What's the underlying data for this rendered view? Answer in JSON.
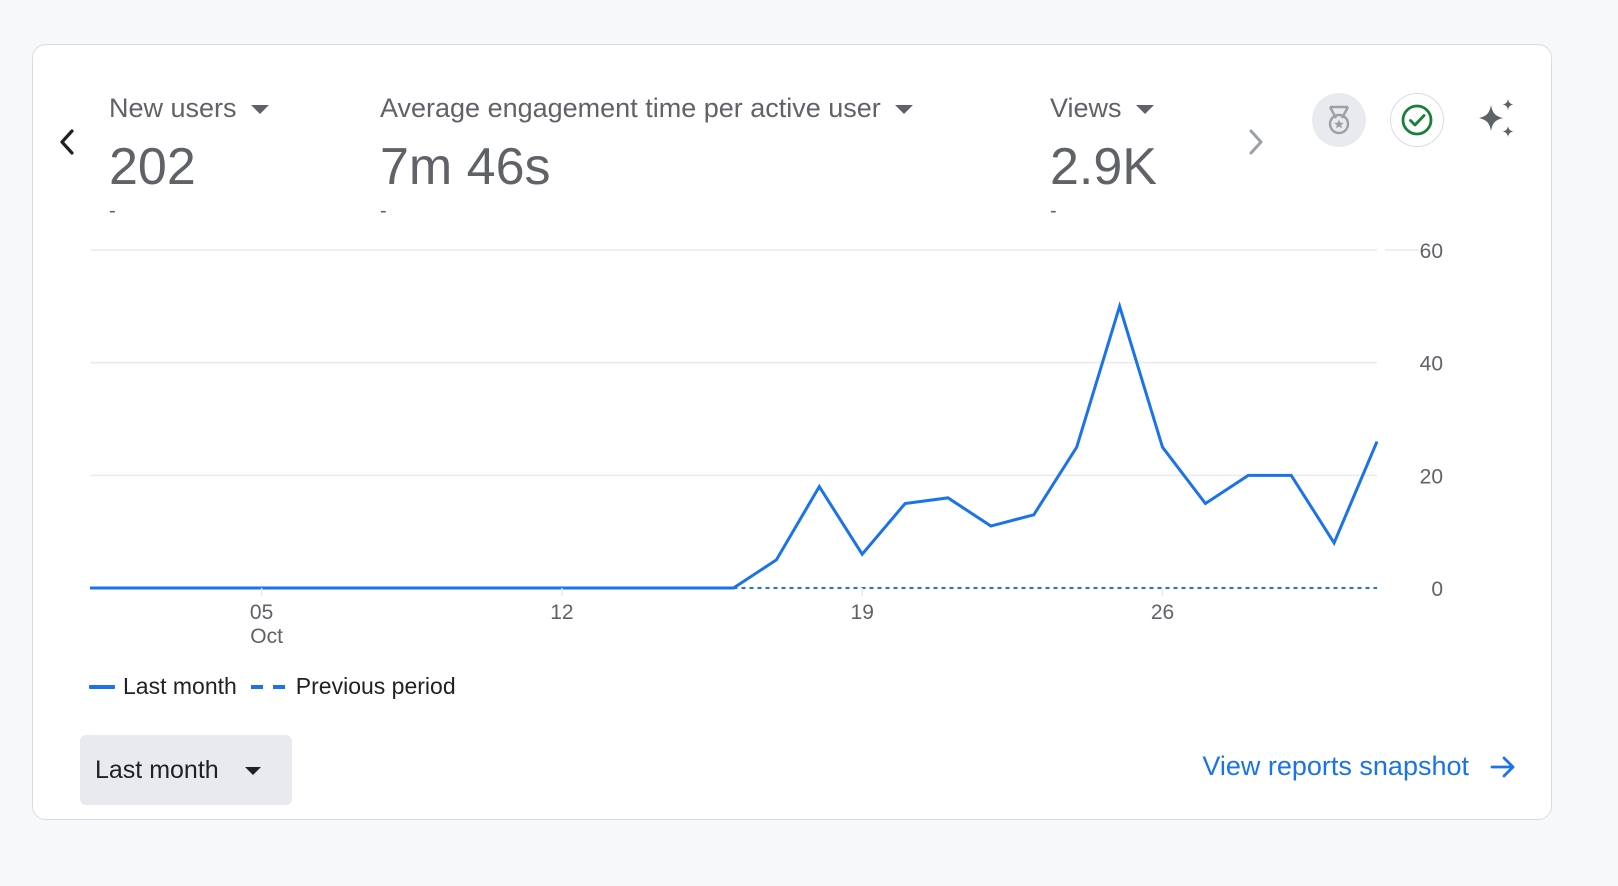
{
  "metrics": [
    {
      "label": "New users",
      "value": "202",
      "sub": "-"
    },
    {
      "label": "Average engagement time per active user",
      "value": "7m 46s",
      "sub": "-"
    },
    {
      "label": "Views",
      "value": "2.9K",
      "sub": "-"
    }
  ],
  "icons": {
    "prev": "chevron-left-icon",
    "next": "chevron-right-icon",
    "badge": "ribbon-medal-icon",
    "check": "check-circle-icon",
    "sparkle": "sparkle-icon"
  },
  "colors": {
    "accent": "#1a73e8",
    "check_green": "#188038",
    "text_muted": "#5f6368",
    "gridline": "#e8eaed"
  },
  "legend": {
    "current": "Last month",
    "previous": "Previous period"
  },
  "date_range": {
    "selected": "Last month"
  },
  "view_link": "View reports snapshot",
  "chart_data": {
    "type": "line",
    "x_tick_labels": [
      {
        "day": 5,
        "label": "05",
        "sublabel": "Oct"
      },
      {
        "day": 12,
        "label": "12",
        "sublabel": ""
      },
      {
        "day": 19,
        "label": "19",
        "sublabel": ""
      },
      {
        "day": 26,
        "label": "26",
        "sublabel": ""
      }
    ],
    "y_ticks": [
      0,
      20,
      40,
      60
    ],
    "ylim": [
      0,
      60
    ],
    "xlim": [
      1,
      31
    ],
    "y_axis_side": "right",
    "grid": true,
    "legend_position": "bottom-left",
    "series": [
      {
        "name": "Last month",
        "style": "solid",
        "x": [
          1,
          2,
          3,
          4,
          5,
          6,
          7,
          8,
          9,
          10,
          11,
          12,
          13,
          14,
          15,
          16,
          17,
          18,
          19,
          20,
          21,
          22,
          23,
          24,
          25,
          26,
          27,
          28,
          29,
          30,
          31
        ],
        "values": [
          0,
          0,
          0,
          0,
          0,
          0,
          0,
          0,
          0,
          0,
          0,
          0,
          0,
          0,
          0,
          0,
          5,
          18,
          6,
          15,
          16,
          11,
          13,
          25,
          50,
          25,
          15,
          20,
          20,
          8,
          26
        ]
      },
      {
        "name": "Previous period",
        "style": "dashed",
        "x": [
          16,
          17,
          18,
          19,
          20,
          21,
          22,
          23,
          24,
          25,
          26,
          27,
          28,
          29,
          30,
          31
        ],
        "values": [
          0,
          0,
          0,
          0,
          0,
          0,
          0,
          0,
          0,
          0,
          0,
          0,
          0,
          0,
          0,
          0
        ]
      }
    ]
  }
}
